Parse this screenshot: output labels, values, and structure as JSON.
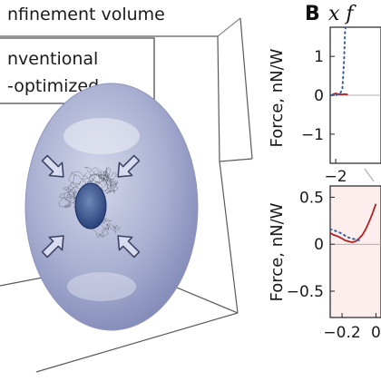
{
  "left_panel": {
    "title": "nfinement volume",
    "legend": [
      "nventional",
      "-optimized"
    ]
  },
  "chart_data": [
    {
      "type": "line",
      "panel_letter": "B",
      "title": "x f",
      "ylabel": "Force, nN/W",
      "xlim": [
        -2.25,
        0.05
      ],
      "ylim": [
        -1.75,
        1.75
      ],
      "xticks": [
        -2
      ],
      "yticks": [
        1,
        0,
        -1
      ],
      "xtick_labels": [
        "−2"
      ],
      "ytick_labels": [
        "1",
        "0",
        "−1"
      ],
      "series": [
        {
          "style": "solid",
          "color": "#b22222",
          "x": [
            -2.2,
            -2.1,
            -2.0,
            -1.9,
            -1.8,
            -1.7,
            -1.6,
            -1.5,
            -1.45
          ],
          "y": [
            0.0,
            0.03,
            0.05,
            0.03,
            0.02,
            0.02,
            0.03,
            0.02,
            0.02
          ]
        },
        {
          "style": "dotted",
          "color": "#3a5f9a",
          "x": [
            -2.2,
            -2.0,
            -1.8,
            -1.7,
            -1.62,
            -1.58,
            -1.55
          ],
          "y": [
            0.0,
            0.0,
            0.05,
            0.15,
            0.9,
            1.6,
            1.75
          ]
        }
      ]
    },
    {
      "type": "line",
      "ylabel": "Force, nN/W",
      "xlim": [
        -0.27,
        0.03
      ],
      "ylim": [
        -0.78,
        0.62
      ],
      "xticks": [
        -0.2,
        0.0
      ],
      "yticks": [
        0.5,
        0,
        -0.5
      ],
      "xtick_labels": [
        "−0.2",
        "0"
      ],
      "ytick_labels": [
        "0.5",
        "0",
        "−0.5"
      ],
      "series": [
        {
          "style": "solid",
          "color": "#b22222",
          "x": [
            -0.27,
            -0.25,
            -0.22,
            -0.2,
            -0.18,
            -0.16,
            -0.14,
            -0.12,
            -0.1,
            -0.08,
            -0.06,
            -0.04,
            -0.02,
            0.0
          ],
          "y": [
            0.12,
            0.1,
            0.08,
            0.06,
            0.04,
            0.03,
            0.02,
            0.03,
            0.06,
            0.1,
            0.16,
            0.24,
            0.33,
            0.43
          ]
        },
        {
          "style": "dotted",
          "color": "#3a5f9a",
          "x": [
            -0.27,
            -0.25,
            -0.22,
            -0.2,
            -0.18,
            -0.16,
            -0.14,
            -0.12,
            -0.1
          ],
          "y": [
            0.16,
            0.15,
            0.13,
            0.11,
            0.09,
            0.07,
            0.06,
            0.05,
            0.04
          ]
        }
      ]
    }
  ]
}
